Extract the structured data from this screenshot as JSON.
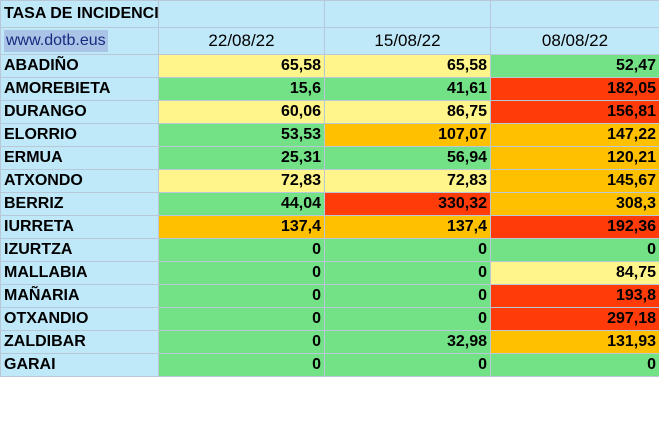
{
  "title": "TASA DE INCIDENCIA",
  "website": "www.dotb.eus",
  "columns": [
    "22/08/22",
    "15/08/22",
    "08/08/22"
  ],
  "colors": {
    "green": "#73e287",
    "yellow": "#fff58a",
    "orange": "#ffc000",
    "red": "#ff3b0a",
    "header": "#bfe8f9"
  },
  "rows": [
    {
      "name": "ABADIÑO",
      "values": [
        "65,58",
        "65,58",
        "52,47"
      ],
      "levels": [
        "yellow",
        "yellow",
        "green"
      ]
    },
    {
      "name": "AMOREBIETA",
      "values": [
        "15,6",
        "41,61",
        "182,05"
      ],
      "levels": [
        "green",
        "green",
        "red"
      ]
    },
    {
      "name": "DURANGO",
      "values": [
        "60,06",
        "86,75",
        "156,81"
      ],
      "levels": [
        "yellow",
        "yellow",
        "red"
      ]
    },
    {
      "name": "ELORRIO",
      "values": [
        "53,53",
        "107,07",
        "147,22"
      ],
      "levels": [
        "green",
        "orange",
        "orange"
      ]
    },
    {
      "name": "ERMUA",
      "values": [
        "25,31",
        "56,94",
        "120,21"
      ],
      "levels": [
        "green",
        "green",
        "orange"
      ]
    },
    {
      "name": "ATXONDO",
      "values": [
        "72,83",
        "72,83",
        "145,67"
      ],
      "levels": [
        "yellow",
        "yellow",
        "orange"
      ]
    },
    {
      "name": "BERRIZ",
      "values": [
        "44,04",
        "330,32",
        "308,3"
      ],
      "levels": [
        "green",
        "red",
        "orange"
      ]
    },
    {
      "name": "IURRETA",
      "values": [
        "137,4",
        "137,4",
        "192,36"
      ],
      "levels": [
        "orange",
        "orange",
        "red"
      ]
    },
    {
      "name": "IZURTZA",
      "values": [
        "0",
        "0",
        "0"
      ],
      "levels": [
        "green",
        "green",
        "green"
      ]
    },
    {
      "name": "MALLABIA",
      "values": [
        "0",
        "0",
        "84,75"
      ],
      "levels": [
        "green",
        "green",
        "yellow"
      ]
    },
    {
      "name": "MAÑARIA",
      "values": [
        "0",
        "0",
        "193,8"
      ],
      "levels": [
        "green",
        "green",
        "red"
      ]
    },
    {
      "name": "OTXANDIO",
      "values": [
        "0",
        "0",
        "297,18"
      ],
      "levels": [
        "green",
        "green",
        "red"
      ]
    },
    {
      "name": "ZALDIBAR",
      "values": [
        "0",
        "32,98",
        "131,93"
      ],
      "levels": [
        "green",
        "green",
        "orange"
      ]
    },
    {
      "name": "GARAI",
      "values": [
        "0",
        "0",
        "0"
      ],
      "levels": [
        "green",
        "green",
        "green"
      ]
    }
  ]
}
